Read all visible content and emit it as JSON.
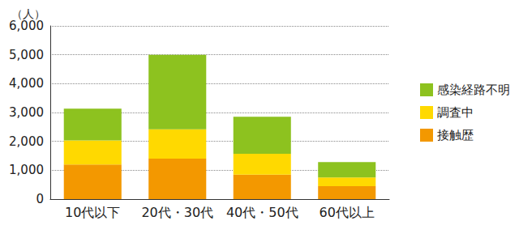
{
  "chart_data": {
    "type": "bar",
    "stacked": true,
    "y_label": "（人）",
    "categories": [
      "10代以下",
      "20代・30代",
      "40代・50代",
      "60代以上"
    ],
    "series": [
      {
        "name": "接触歴",
        "color": "#f39800",
        "values": [
          1200,
          1400,
          850,
          450
        ]
      },
      {
        "name": "調査中",
        "color": "#ffd900",
        "values": [
          830,
          1020,
          720,
          300
        ]
      },
      {
        "name": "感染経路不明",
        "color": "#8dc21f",
        "values": [
          1100,
          2580,
          1280,
          530
        ]
      }
    ],
    "ylim": [
      0,
      6000
    ],
    "yticks": [
      0,
      {
        "value": 1000,
        "label": "1,000"
      },
      {
        "value": 2000,
        "label": "2,000"
      },
      {
        "value": 3000,
        "label": "3,000"
      },
      {
        "value": 4000,
        "label": "4,000"
      },
      {
        "value": 5000,
        "label": "5,000"
      },
      {
        "value": 6000,
        "label": "6,000"
      }
    ],
    "grid": true,
    "legend": "right"
  }
}
